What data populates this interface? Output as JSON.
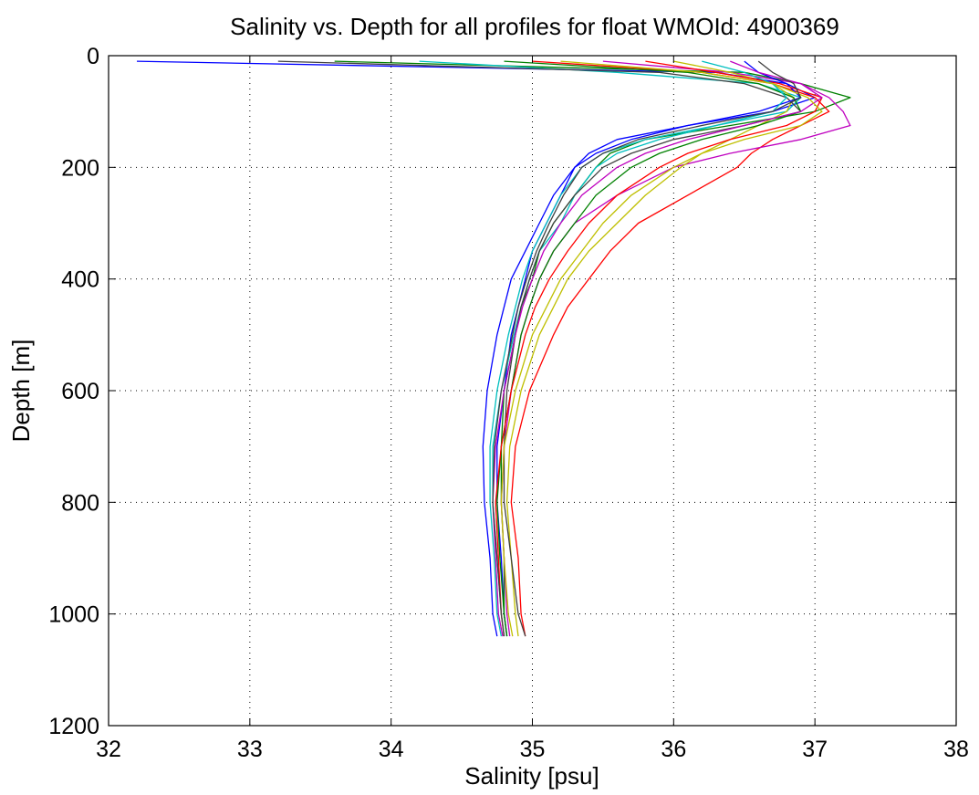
{
  "chart_data": {
    "type": "line",
    "title": "Salinity vs. Depth for all profiles for float WMOId: 4900369",
    "xlabel": "Salinity [psu]",
    "ylabel": "Depth [m]",
    "xlim": [
      32,
      38
    ],
    "ylim": [
      0,
      1200
    ],
    "y_reversed": true,
    "grid": true,
    "x_ticks": [
      "32",
      "33",
      "34",
      "35",
      "36",
      "37",
      "38"
    ],
    "y_ticks": [
      "0",
      "200",
      "400",
      "600",
      "800",
      "1000",
      "1200"
    ],
    "colors": [
      "#0000ff",
      "#008000",
      "#ff0000",
      "#00bfbf",
      "#bf00bf",
      "#bfbf00",
      "#404040"
    ],
    "depths": [
      10,
      30,
      50,
      75,
      100,
      125,
      150,
      175,
      200,
      250,
      300,
      350,
      400,
      450,
      500,
      600,
      700,
      800,
      900,
      1000,
      1040
    ],
    "series": [
      {
        "values": [
          32.2,
          36.3,
          36.8,
          37.0,
          36.7,
          36.1,
          35.6,
          35.4,
          35.3,
          35.2,
          35.1,
          35.0,
          34.95,
          34.9,
          34.85,
          34.8,
          34.75,
          34.75,
          34.78,
          34.8,
          34.82
        ]
      },
      {
        "values": [
          33.6,
          36.5,
          36.9,
          37.25,
          37.0,
          36.4,
          35.8,
          35.55,
          35.45,
          35.3,
          35.15,
          35.05,
          35.0,
          34.92,
          34.88,
          34.8,
          34.78,
          34.78,
          34.8,
          34.8,
          34.82
        ]
      },
      {
        "values": [
          35.0,
          36.2,
          36.7,
          37.0,
          37.1,
          36.9,
          36.7,
          36.55,
          36.45,
          36.1,
          35.75,
          35.55,
          35.4,
          35.25,
          35.15,
          34.98,
          34.88,
          34.85,
          34.9,
          34.92,
          34.95
        ]
      },
      {
        "values": [
          34.2,
          35.6,
          36.6,
          36.9,
          36.8,
          36.3,
          35.9,
          35.6,
          35.45,
          35.3,
          35.2,
          35.05,
          34.98,
          34.92,
          34.87,
          34.78,
          34.72,
          34.72,
          34.75,
          34.78,
          34.8
        ]
      },
      {
        "values": [
          35.5,
          36.4,
          36.9,
          37.1,
          37.2,
          37.25,
          36.9,
          36.4,
          36.0,
          35.6,
          35.3,
          35.15,
          35.05,
          34.98,
          34.92,
          34.85,
          34.8,
          34.78,
          34.8,
          34.82,
          34.84
        ]
      },
      {
        "values": [
          36.0,
          36.4,
          36.7,
          36.85,
          36.8,
          36.6,
          36.4,
          36.2,
          36.05,
          35.8,
          35.6,
          35.4,
          35.25,
          35.15,
          35.05,
          34.92,
          34.84,
          34.82,
          34.85,
          34.88,
          34.9
        ]
      },
      {
        "values": [
          33.2,
          35.9,
          36.5,
          36.8,
          36.9,
          36.5,
          36.0,
          35.7,
          35.5,
          35.3,
          35.15,
          35.05,
          34.98,
          34.92,
          34.88,
          34.82,
          34.8,
          34.8,
          34.85,
          34.9,
          34.95
        ]
      },
      {
        "values": [
          36.5,
          36.6,
          36.8,
          36.9,
          36.6,
          36.1,
          35.7,
          35.45,
          35.3,
          35.15,
          35.05,
          34.95,
          34.85,
          34.8,
          34.75,
          34.68,
          34.65,
          34.66,
          34.7,
          34.72,
          34.75
        ]
      },
      {
        "values": [
          34.8,
          36.1,
          36.6,
          36.85,
          36.9,
          36.6,
          36.2,
          35.9,
          35.7,
          35.45,
          35.3,
          35.15,
          35.05,
          34.98,
          34.92,
          34.85,
          34.78,
          34.75,
          34.77,
          34.8,
          34.82
        ]
      },
      {
        "values": [
          35.8,
          36.3,
          36.75,
          37.05,
          37.0,
          36.8,
          36.4,
          36.1,
          35.9,
          35.6,
          35.4,
          35.25,
          35.12,
          35.02,
          34.95,
          34.85,
          34.78,
          34.74,
          34.76,
          34.78,
          34.8
        ]
      },
      {
        "values": [
          36.2,
          36.5,
          36.7,
          36.8,
          36.7,
          36.3,
          35.8,
          35.5,
          35.35,
          35.2,
          35.1,
          35.0,
          34.93,
          34.88,
          34.83,
          34.75,
          34.7,
          34.7,
          34.73,
          34.75,
          34.78
        ]
      },
      {
        "values": [
          36.4,
          36.6,
          36.9,
          37.05,
          36.9,
          36.5,
          36.1,
          35.8,
          35.6,
          35.35,
          35.2,
          35.08,
          35.0,
          34.93,
          34.88,
          34.8,
          34.74,
          34.72,
          34.74,
          34.76,
          34.79
        ]
      },
      {
        "values": [
          35.2,
          36.2,
          36.7,
          36.95,
          37.05,
          36.9,
          36.5,
          36.2,
          36.0,
          35.7,
          35.5,
          35.35,
          35.2,
          35.1,
          35.0,
          34.88,
          34.8,
          34.78,
          34.8,
          34.83,
          34.86
        ]
      },
      {
        "values": [
          36.6,
          36.7,
          36.85,
          36.9,
          36.7,
          36.2,
          35.75,
          35.5,
          35.35,
          35.22,
          35.12,
          35.03,
          34.96,
          34.9,
          34.86,
          34.78,
          34.73,
          34.72,
          34.75,
          34.78,
          34.8
        ]
      }
    ]
  }
}
